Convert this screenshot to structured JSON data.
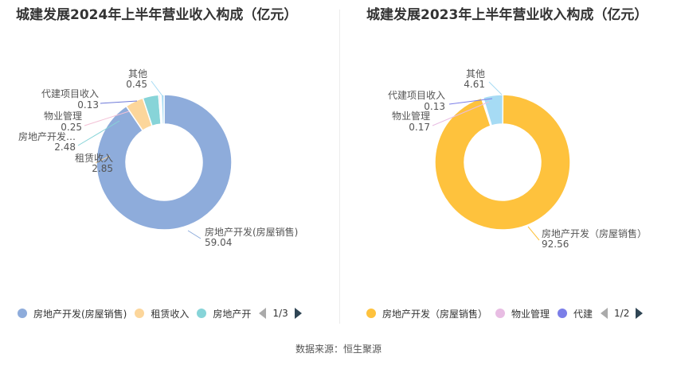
{
  "source": "数据来源：恒生聚源",
  "chart_data": [
    {
      "type": "pie",
      "title": "城建发展2024年上半年营业收入构成（亿元）",
      "slices": [
        {
          "name": "房地产开发(房屋销售)",
          "label": "房地产开发(房屋销售)",
          "value": 59.04,
          "display": "59.04",
          "color": "#8eacdb"
        },
        {
          "name": "租赁收入",
          "label": "租赁收入",
          "value": 2.85,
          "display": "2.85",
          "color": "#fcd69b"
        },
        {
          "name": "房地产开发",
          "label": "房地产开发…",
          "value": 2.48,
          "display": "2.48",
          "color": "#87d4d8"
        },
        {
          "name": "物业管理",
          "label": "物业管理",
          "value": 0.25,
          "display": "0.25",
          "color": "#f3c1d6"
        },
        {
          "name": "代建项目收入",
          "label": "代建项目收入",
          "value": 0.13,
          "display": "0.13",
          "color": "#6c78d8"
        },
        {
          "name": "其他",
          "label": "其他",
          "value": 0.45,
          "display": "0.45",
          "color": "#a6dbf4"
        }
      ],
      "legend": {
        "items": [
          {
            "label": "房地产开发(房屋销售)",
            "color": "#8eacdb"
          },
          {
            "label": "租赁收入",
            "color": "#fcd69b"
          },
          {
            "label": "房地产开",
            "color": "#87d4d8"
          }
        ],
        "page": "1/3"
      }
    },
    {
      "type": "pie",
      "title": "城建发展2023年上半年营业收入构成（亿元）",
      "slices": [
        {
          "name": "房地产开发（房屋销售）",
          "label": "房地产开发（房屋销售）",
          "value": 92.56,
          "display": "92.56",
          "color": "#fec23d"
        },
        {
          "name": "物业管理",
          "label": "物业管理",
          "value": 0.17,
          "display": "0.17",
          "color": "#e8bde3"
        },
        {
          "name": "代建项目收入",
          "label": "代建项目收入",
          "value": 0.13,
          "display": "0.13",
          "color": "#7b7ee8"
        },
        {
          "name": "其他",
          "label": "其他",
          "value": 4.61,
          "display": "4.61",
          "color": "#a6dbf4"
        }
      ],
      "legend": {
        "items": [
          {
            "label": "房地产开发（房屋销售）",
            "color": "#fec23d"
          },
          {
            "label": "物业管理",
            "color": "#e8bde3"
          },
          {
            "label": "代建",
            "color": "#7b7ee8"
          }
        ],
        "page": "1/2"
      }
    }
  ]
}
